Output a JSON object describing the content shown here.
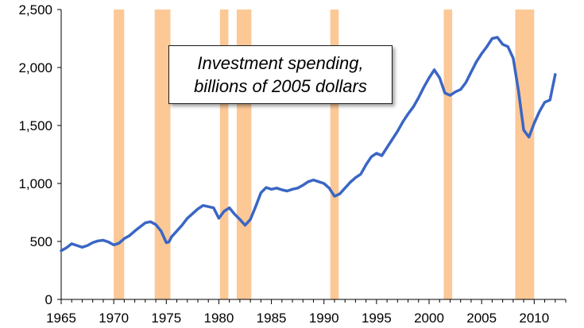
{
  "chart_data": {
    "type": "line",
    "annotation": [
      "Investment spending,",
      "billions of 2005 dollars"
    ],
    "xlim": [
      1965,
      2013
    ],
    "ylim": [
      0,
      2500
    ],
    "x_ticks": [
      "1965",
      "1970",
      "1975",
      "1980",
      "1985",
      "1990",
      "1995",
      "2000",
      "2005",
      "2010"
    ],
    "y_ticks": [
      "0",
      "500",
      "1,000",
      "1,500",
      "2,000",
      "2,500"
    ],
    "grid": false,
    "legend": "none",
    "colors": {
      "line": "#3a66c4",
      "recession": "#fcc896",
      "axis": "#000000"
    },
    "recessions": [
      [
        1970.0,
        1971.0
      ],
      [
        1973.9,
        1975.4
      ],
      [
        1980.1,
        1980.9
      ],
      [
        1981.7,
        1983.1
      ],
      [
        1990.6,
        1991.4
      ],
      [
        2001.4,
        2002.2
      ],
      [
        2008.2,
        2010.0
      ]
    ],
    "series": [
      {
        "x": [
          1965.0,
          1965.5,
          1966.0,
          1966.5,
          1967.0,
          1967.5,
          1968.0,
          1968.5,
          1969.0,
          1969.5,
          1970.0,
          1970.5,
          1971.0,
          1971.5,
          1972.0,
          1972.5,
          1973.0,
          1973.5,
          1974.0,
          1974.5,
          1975.0,
          1975.25,
          1975.5,
          1976.0,
          1976.5,
          1977.0,
          1977.5,
          1978.0,
          1978.5,
          1979.0,
          1979.5,
          1980.0,
          1980.5,
          1981.0,
          1981.5,
          1982.0,
          1982.5,
          1983.0,
          1983.5,
          1984.0,
          1984.5,
          1985.0,
          1985.5,
          1986.0,
          1986.5,
          1987.0,
          1987.5,
          1988.0,
          1988.5,
          1989.0,
          1989.5,
          1990.0,
          1990.5,
          1991.0,
          1991.5,
          1992.0,
          1992.5,
          1993.0,
          1993.5,
          1994.0,
          1994.5,
          1995.0,
          1995.5,
          1996.0,
          1996.5,
          1997.0,
          1997.5,
          1998.0,
          1998.5,
          1999.0,
          1999.5,
          2000.0,
          2000.5,
          2001.0,
          2001.5,
          2002.0,
          2002.5,
          2003.0,
          2003.5,
          2004.0,
          2004.5,
          2005.0,
          2005.5,
          2006.0,
          2006.5,
          2007.0,
          2007.5,
          2008.0,
          2008.5,
          2009.0,
          2009.5,
          2010.0,
          2010.5,
          2011.0,
          2011.5,
          2012.0
        ],
        "y": [
          420,
          445,
          480,
          465,
          450,
          465,
          490,
          505,
          510,
          495,
          470,
          485,
          525,
          550,
          590,
          625,
          660,
          670,
          645,
          590,
          490,
          495,
          540,
          590,
          640,
          700,
          740,
          780,
          810,
          800,
          790,
          700,
          760,
          790,
          735,
          690,
          640,
          690,
          800,
          920,
          965,
          950,
          960,
          945,
          935,
          950,
          960,
          985,
          1015,
          1030,
          1015,
          1000,
          960,
          890,
          910,
          960,
          1010,
          1050,
          1080,
          1160,
          1230,
          1260,
          1240,
          1310,
          1380,
          1450,
          1530,
          1600,
          1660,
          1740,
          1830,
          1910,
          1980,
          1910,
          1780,
          1760,
          1790,
          1810,
          1870,
          1960,
          2050,
          2120,
          2180,
          2250,
          2260,
          2200,
          2180,
          2080,
          1800,
          1460,
          1400,
          1520,
          1620,
          1700,
          1720,
          1940
        ]
      }
    ]
  }
}
